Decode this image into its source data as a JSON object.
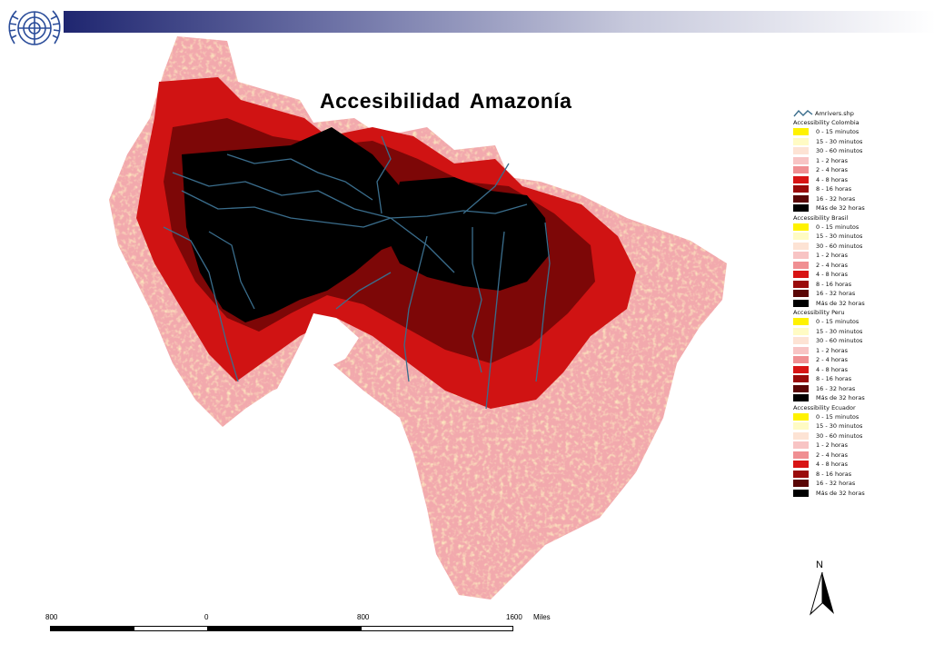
{
  "title": "Accesibilidad  Amazonía",
  "legend": {
    "rivers_label": "Amrivers.shp",
    "groups": [
      {
        "title": "Accessibility Colombia"
      },
      {
        "title": "Accessibility Brasil"
      },
      {
        "title": "Accessibility Peru"
      },
      {
        "title": "Accessibility Ecuador"
      }
    ],
    "classes": [
      {
        "label": "0 - 15 minutos",
        "color": "#fff200"
      },
      {
        "label": "15 - 30 minutos",
        "color": "#fffbc4"
      },
      {
        "label": "30 - 60 minutos",
        "color": "#fde3d4"
      },
      {
        "label": "1 - 2 horas",
        "color": "#f8c4c4"
      },
      {
        "label": "2 - 4 horas",
        "color": "#f08f92"
      },
      {
        "label": "4 - 8 horas",
        "color": "#d81414"
      },
      {
        "label": "8 - 16 horas",
        "color": "#9a0a0a"
      },
      {
        "label": "16 - 32 horas",
        "color": "#5a0606"
      },
      {
        "label": "Más de 32 horas",
        "color": "#000000"
      }
    ]
  },
  "north_label": "N",
  "scale": {
    "labels": [
      "800",
      "0",
      "800",
      "1600",
      "Miles"
    ]
  },
  "colors": {
    "river": "#3a6d8c",
    "header_dark": "#1f2670"
  }
}
